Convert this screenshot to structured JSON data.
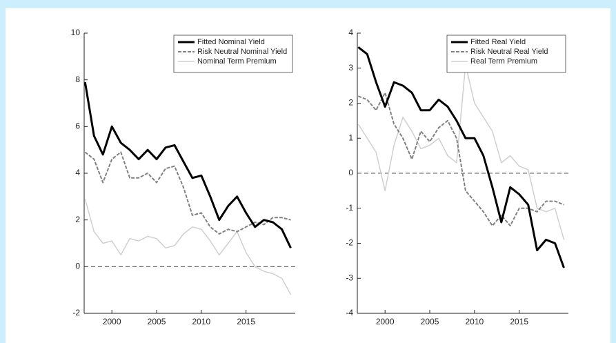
{
  "chart_data": [
    {
      "type": "line",
      "xlim": [
        1996.9,
        2020.5
      ],
      "ylim": [
        -2,
        10
      ],
      "xticks": [
        2000,
        2005,
        2010,
        2015
      ],
      "yticks": [
        -2,
        0,
        2,
        4,
        6,
        8,
        10
      ],
      "reference_line": 0,
      "legend": "upper right",
      "x": [
        1997,
        1998,
        1999,
        2000,
        2001,
        2002,
        2003,
        2004,
        2005,
        2006,
        2007,
        2008,
        2009,
        2010,
        2011,
        2012,
        2013,
        2014,
        2015,
        2016,
        2017,
        2018,
        2019,
        2020
      ],
      "series": [
        {
          "name": "Fitted Nominal Yield",
          "color": "#000000",
          "linestyle": "solid",
          "linewidth": 3,
          "values": [
            7.9,
            5.6,
            4.8,
            6.0,
            5.3,
            5.0,
            4.6,
            5.0,
            4.6,
            5.1,
            5.2,
            4.5,
            3.8,
            3.9,
            3.0,
            2.0,
            2.6,
            3.0,
            2.3,
            1.7,
            2.0,
            1.9,
            1.6,
            0.8
          ]
        },
        {
          "name": "Risk Neutral Nominal Yield",
          "color": "#808080",
          "linestyle": "dashed",
          "linewidth": 2,
          "values": [
            4.9,
            4.6,
            3.6,
            4.6,
            4.9,
            3.8,
            3.8,
            4.0,
            3.6,
            4.2,
            4.3,
            3.4,
            2.2,
            2.3,
            1.7,
            1.4,
            1.6,
            1.5,
            1.7,
            1.9,
            1.8,
            2.1,
            2.1,
            2.0
          ]
        },
        {
          "name": "Nominal Term Premium",
          "color": "#cfcfcf",
          "linestyle": "solid",
          "linewidth": 1.5,
          "values": [
            2.9,
            1.5,
            1.0,
            1.1,
            0.5,
            1.2,
            1.1,
            1.3,
            1.2,
            0.8,
            0.9,
            1.4,
            1.7,
            1.6,
            1.1,
            0.5,
            1.0,
            1.5,
            0.6,
            0.0,
            -0.2,
            -0.3,
            -0.5,
            -1.2
          ]
        }
      ]
    },
    {
      "type": "line",
      "xlim": [
        1996.9,
        2020.5
      ],
      "ylim": [
        -4,
        4
      ],
      "xticks": [
        2000,
        2005,
        2010,
        2015
      ],
      "yticks": [
        -4,
        -3,
        -2,
        -1,
        0,
        1,
        2,
        3,
        4
      ],
      "reference_line": 0,
      "legend": "upper right",
      "x": [
        1997,
        1998,
        1999,
        2000,
        2001,
        2002,
        2003,
        2004,
        2005,
        2006,
        2007,
        2008,
        2009,
        2010,
        2011,
        2012,
        2013,
        2014,
        2015,
        2016,
        2017,
        2018,
        2019,
        2020
      ],
      "series": [
        {
          "name": "Fitted Real Yield",
          "color": "#000000",
          "linestyle": "solid",
          "linewidth": 3,
          "values": [
            3.6,
            3.4,
            2.6,
            1.9,
            2.6,
            2.5,
            2.3,
            1.8,
            1.8,
            2.1,
            1.9,
            1.5,
            1.0,
            1.0,
            0.5,
            -0.4,
            -1.4,
            -0.4,
            -0.6,
            -0.9,
            -2.2,
            -1.9,
            -2.0,
            -2.7
          ]
        },
        {
          "name": "Risk Neutral Real Yield",
          "color": "#808080",
          "linestyle": "dashed",
          "linewidth": 2,
          "values": [
            2.2,
            2.1,
            1.8,
            2.3,
            1.4,
            1.0,
            0.4,
            1.2,
            0.9,
            1.3,
            1.5,
            1.0,
            -0.5,
            -0.8,
            -1.1,
            -1.5,
            -1.2,
            -1.5,
            -1.0,
            -1.0,
            -1.1,
            -0.8,
            -0.8,
            -0.9
          ]
        },
        {
          "name": "Real Term Premium",
          "color": "#cfcfcf",
          "linestyle": "solid",
          "linewidth": 1.5,
          "values": [
            1.4,
            1.0,
            0.6,
            -0.5,
            0.8,
            1.6,
            1.2,
            0.7,
            0.8,
            1.0,
            0.5,
            0.3,
            3.1,
            2.0,
            1.6,
            1.2,
            0.3,
            0.5,
            0.2,
            0.1,
            -1.0,
            -1.1,
            -1.0,
            -1.9
          ]
        }
      ]
    }
  ]
}
